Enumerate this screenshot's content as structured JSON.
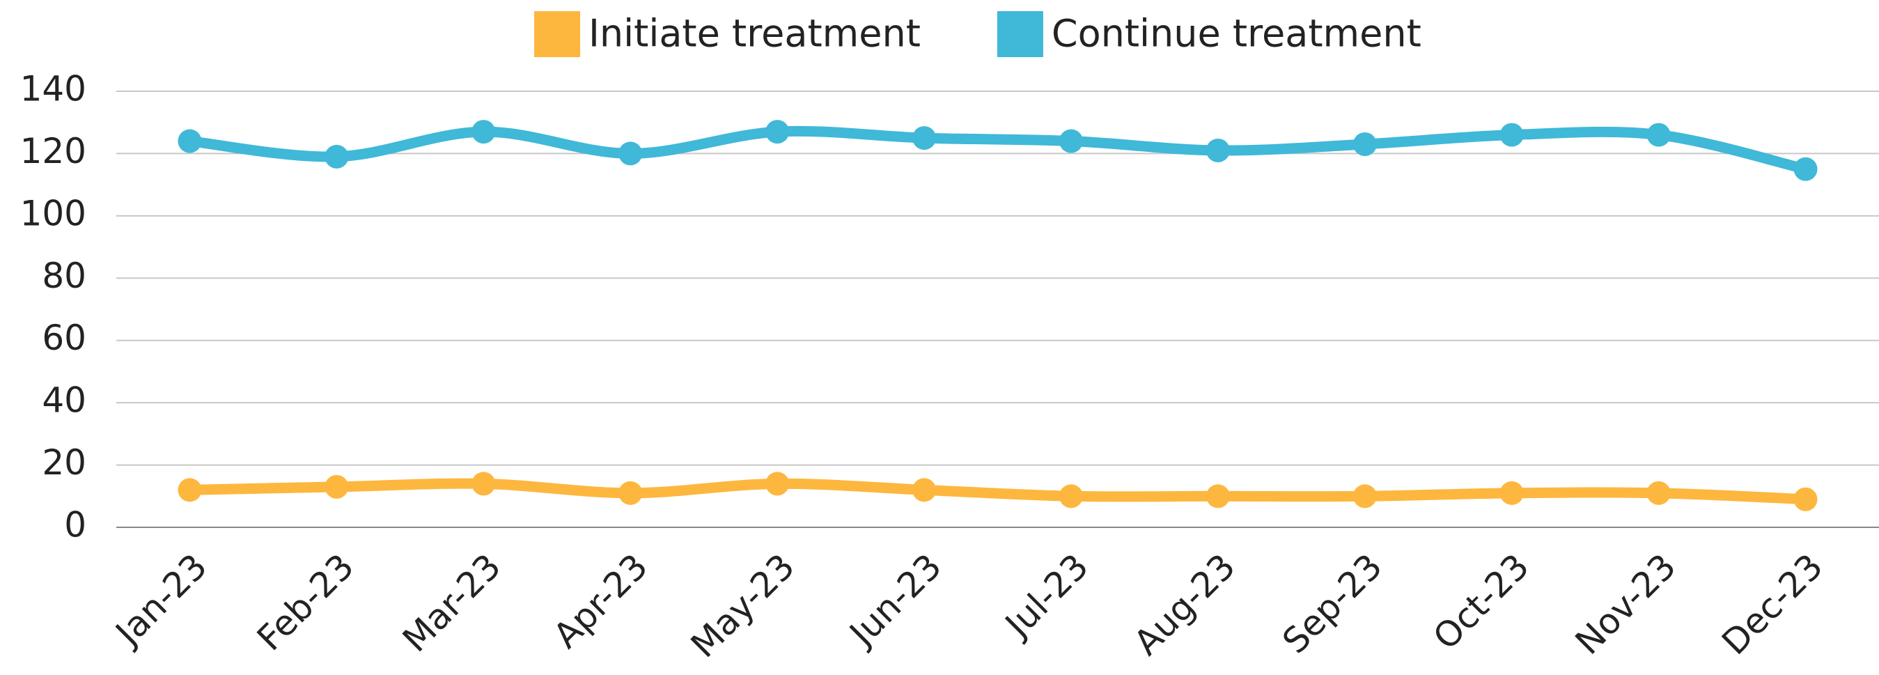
{
  "chart_data": {
    "type": "line",
    "categories": [
      "Jan-23",
      "Feb-23",
      "Mar-23",
      "Apr-23",
      "May-23",
      "Jun-23",
      "Jul-23",
      "Aug-23",
      "Sep-23",
      "Oct-23",
      "Nov-23",
      "Dec-23"
    ],
    "series": [
      {
        "name": "Initiate treatment",
        "color": "#fdb73e",
        "values": [
          12,
          13,
          14,
          11,
          14,
          12,
          10,
          10,
          10,
          11,
          11,
          9
        ]
      },
      {
        "name": "Continue treatment",
        "color": "#40b8d8",
        "values": [
          124,
          119,
          127,
          120,
          127,
          125,
          124,
          121,
          123,
          126,
          126,
          115
        ]
      }
    ],
    "ylim": [
      0,
      140
    ],
    "yticks": [
      0,
      20,
      40,
      60,
      80,
      100,
      120,
      140
    ],
    "grid": true,
    "legend": "top",
    "smooth": true
  }
}
